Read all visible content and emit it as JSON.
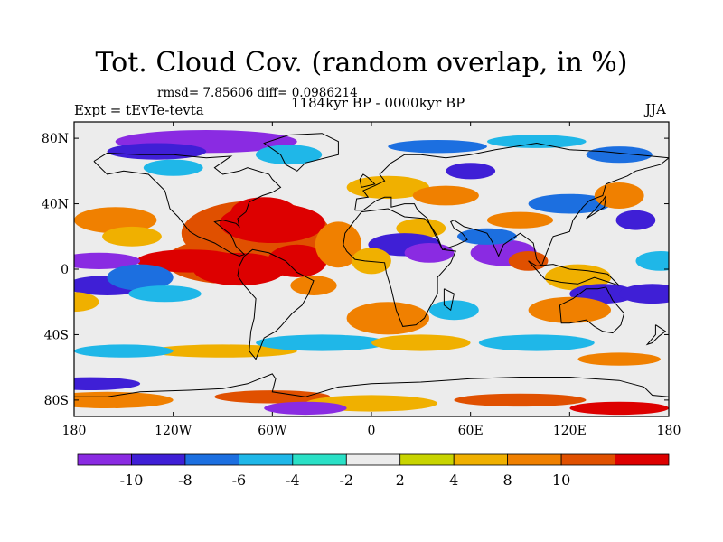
{
  "figure": {
    "title": "Tot. Cloud Cov. (random overlap, in %)",
    "stats": "rmsd= 7.85606 diff= 0.0986214",
    "experiment": "Expt = tEvTe-tevta",
    "period": "1184kyr BP - 0000kyr BP",
    "season": "JJA"
  },
  "map": {
    "lon_range": [
      -180,
      180
    ],
    "lat_range": [
      -90,
      90
    ],
    "x_ticks": [
      "180",
      "120W",
      "60W",
      "0",
      "60E",
      "120E",
      "180"
    ],
    "y_ticks": [
      "80N",
      "40N",
      "0",
      "40S",
      "80S"
    ]
  },
  "colorbar": {
    "colors": [
      "#8a2be2",
      "#3f1fd6",
      "#1c6fe0",
      "#1fb7e8",
      "#2ae0c6",
      "#ececec",
      "#c8d400",
      "#f0b000",
      "#f08000",
      "#e05000",
      "#dd0000"
    ],
    "labels": [
      "-10",
      "-8",
      "-6",
      "-4",
      "-2",
      "2",
      "4",
      "8",
      "10"
    ]
  }
}
